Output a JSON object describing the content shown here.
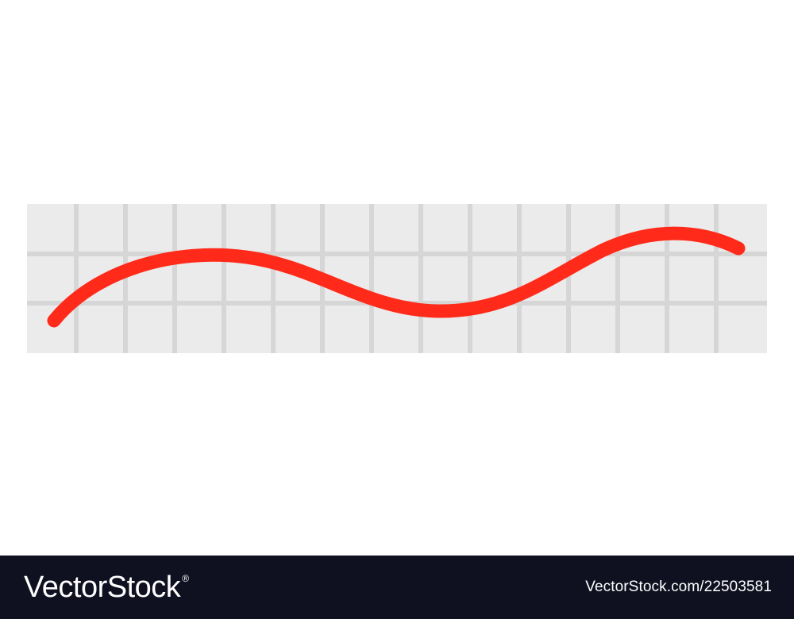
{
  "illustration": {
    "line_color": "#ff2a1a",
    "grid_bg_color": "#ebebeb",
    "grid_line_color": "#d6d6d6",
    "page_bg_color": "#ffffff"
  },
  "footer": {
    "background_color": "#0f1020",
    "brand": "VectorStock",
    "registered_mark": "®",
    "image_id": "VectorStock.com/22503581"
  }
}
